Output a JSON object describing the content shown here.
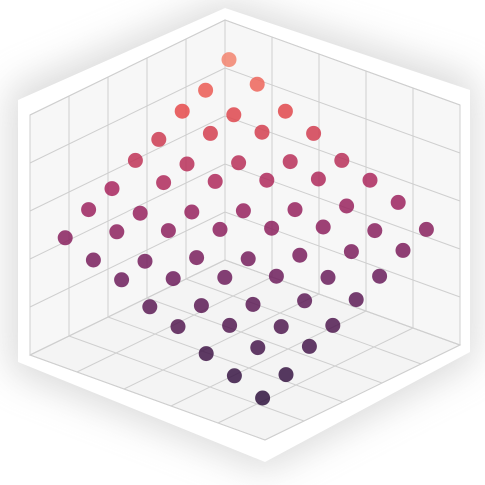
{
  "chart_data": {
    "type": "scatter3d",
    "grid": true,
    "xlim": [
      0,
      1
    ],
    "ylim": [
      0,
      1
    ],
    "zlim": [
      0,
      1
    ],
    "xticks": [
      0,
      0.2,
      0.4,
      0.6,
      0.8,
      1
    ],
    "yticks": [
      0,
      0.2,
      0.4,
      0.6,
      0.8,
      1
    ],
    "zticks": [
      0,
      0.2,
      0.4,
      0.6,
      0.8,
      1
    ],
    "colormap": [
      "#1b0c2e",
      "#3b1746",
      "#6a1d5c",
      "#a5245f",
      "#e84c4a",
      "#fbb18c"
    ],
    "x": [
      0.9,
      0.9,
      0.9,
      0.9,
      0.9,
      0.9,
      0.9,
      0.9,
      0.78,
      0.78,
      0.78,
      0.78,
      0.78,
      0.78,
      0.78,
      0.78,
      0.66,
      0.66,
      0.66,
      0.66,
      0.66,
      0.66,
      0.66,
      0.66,
      0.54,
      0.54,
      0.54,
      0.54,
      0.54,
      0.54,
      0.54,
      0.54,
      0.42,
      0.42,
      0.42,
      0.42,
      0.42,
      0.42,
      0.42,
      0.42,
      0.3,
      0.3,
      0.3,
      0.3,
      0.3,
      0.3,
      0.3,
      0.3,
      0.18,
      0.18,
      0.18,
      0.18,
      0.18,
      0.18,
      0.18,
      0.18,
      0.06,
      0.06,
      0.06,
      0.06,
      0.06,
      0.06,
      0.06,
      0.06
    ],
    "y": [
      0.9,
      0.78,
      0.66,
      0.54,
      0.42,
      0.3,
      0.18,
      0.06,
      0.9,
      0.78,
      0.66,
      0.54,
      0.42,
      0.3,
      0.18,
      0.06,
      0.9,
      0.78,
      0.66,
      0.54,
      0.42,
      0.3,
      0.18,
      0.06,
      0.9,
      0.78,
      0.66,
      0.54,
      0.42,
      0.3,
      0.18,
      0.06,
      0.9,
      0.78,
      0.66,
      0.54,
      0.42,
      0.3,
      0.18,
      0.06,
      0.9,
      0.78,
      0.66,
      0.54,
      0.42,
      0.3,
      0.18,
      0.06,
      0.9,
      0.78,
      0.66,
      0.54,
      0.42,
      0.3,
      0.18,
      0.06,
      0.9,
      0.78,
      0.66,
      0.54,
      0.42,
      0.3,
      0.18,
      0.06
    ],
    "z": [
      0.91,
      0.83,
      0.79,
      0.72,
      0.68,
      0.61,
      0.57,
      0.5,
      0.85,
      0.77,
      0.74,
      0.66,
      0.63,
      0.55,
      0.52,
      0.45,
      0.78,
      0.74,
      0.66,
      0.63,
      0.55,
      0.52,
      0.44,
      0.41,
      0.73,
      0.66,
      0.63,
      0.55,
      0.52,
      0.45,
      0.41,
      0.34,
      0.66,
      0.63,
      0.55,
      0.52,
      0.44,
      0.41,
      0.34,
      0.3,
      0.62,
      0.56,
      0.52,
      0.45,
      0.41,
      0.34,
      0.3,
      0.23,
      0.57,
      0.5,
      0.46,
      0.4,
      0.35,
      0.29,
      0.25,
      0.18,
      0.5,
      0.46,
      0.4,
      0.35,
      0.29,
      0.25,
      0.18,
      0.13
    ]
  }
}
